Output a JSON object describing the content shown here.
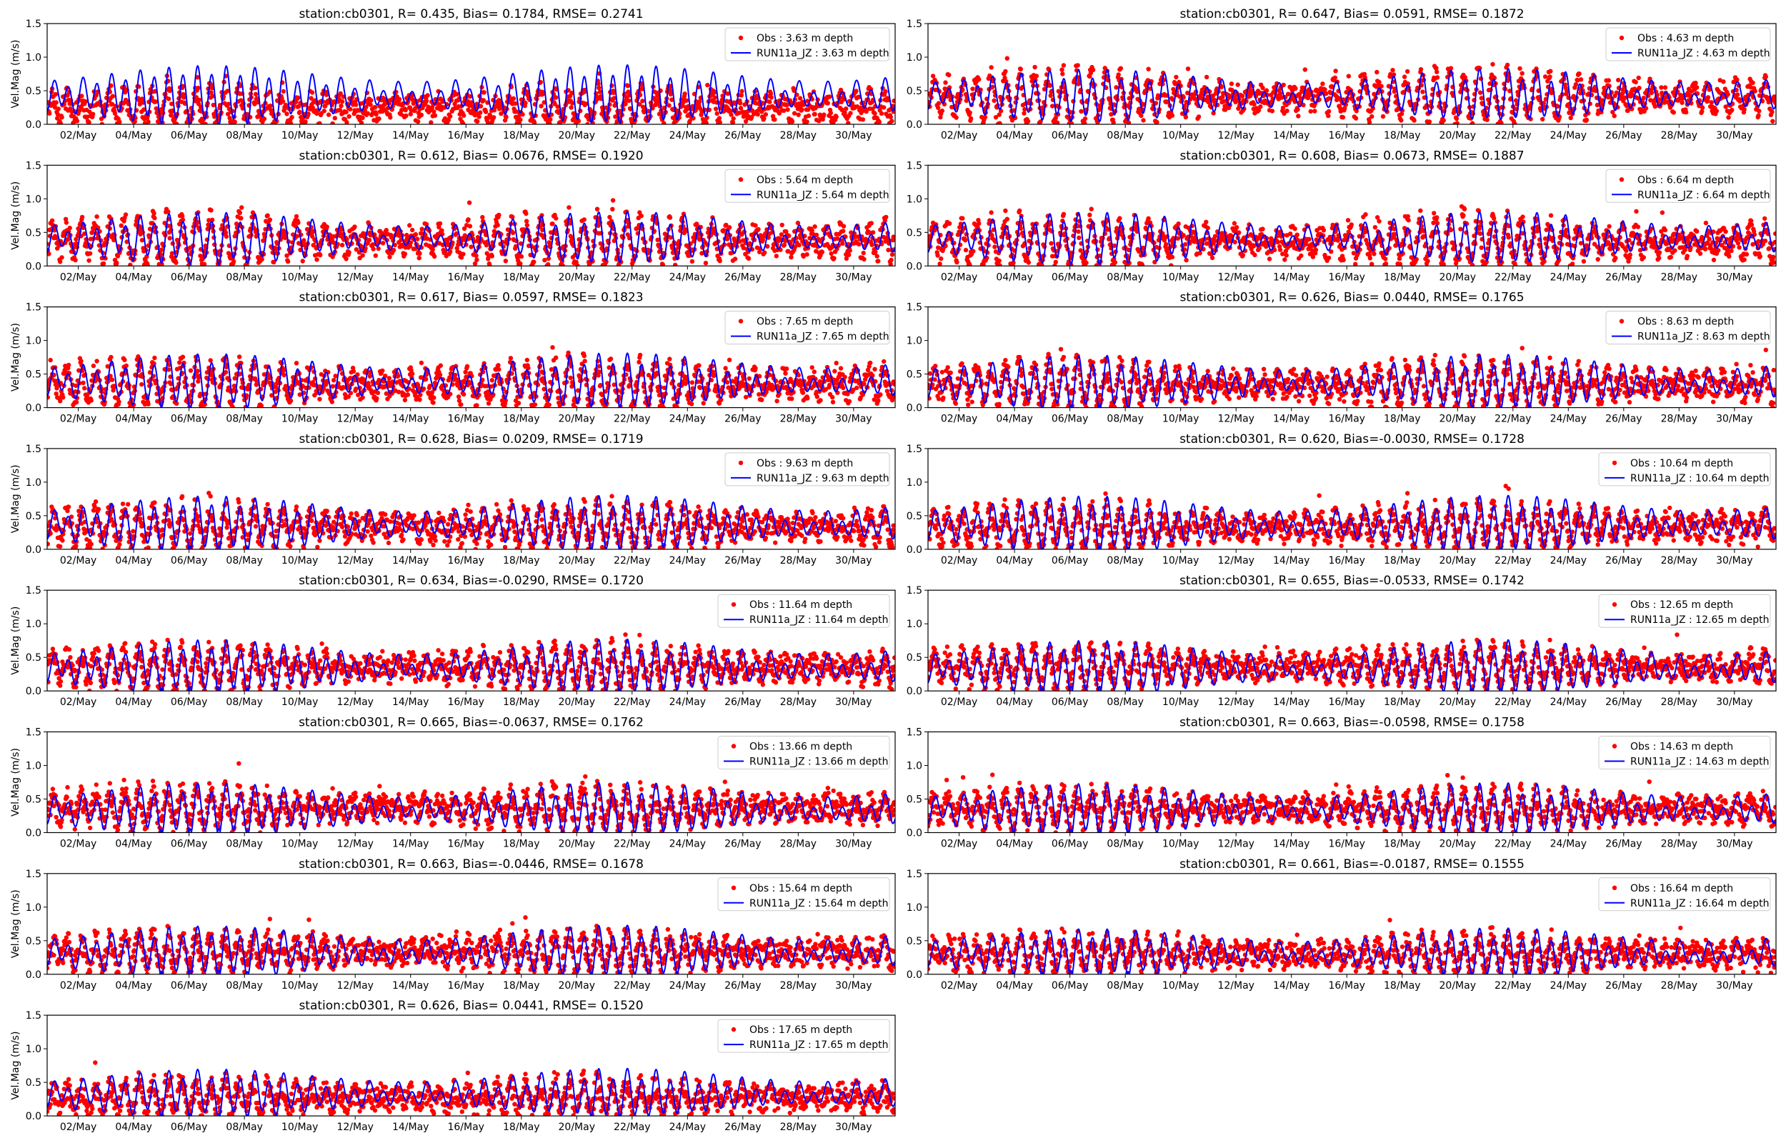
{
  "figure": {
    "obs_color": "#ff0000",
    "model_color": "#0000ff"
  },
  "chart_data": [
    {
      "type": "line",
      "title": "station:cb0301, R= 0.435, Bias= 0.1784, RMSE= 0.2741",
      "ylabel": "Vel.Mag (m/s)",
      "ylim": [
        0,
        1.5
      ],
      "yticks": [
        "0.0",
        "0.5",
        "1.0",
        "1.5"
      ],
      "xticks": [
        "02/May",
        "04/May",
        "06/May",
        "08/May",
        "10/May",
        "12/May",
        "14/May",
        "16/May",
        "18/May",
        "20/May",
        "22/May",
        "24/May",
        "26/May",
        "28/May",
        "30/May"
      ],
      "legend_loc": "upper right",
      "series": [
        {
          "name": "Obs : 3.63 m depth",
          "kind": "scatter",
          "mean": 0.25,
          "amp": 0.22
        },
        {
          "name": "RUN11a_JZ : 3.63 m depth",
          "kind": "line",
          "mean": 0.42,
          "amp": 0.35
        }
      ]
    },
    {
      "type": "line",
      "title": "station:cb0301, R= 0.647, Bias= 0.0591, RMSE= 0.1872",
      "ylabel": "",
      "ylim": [
        0,
        1.5
      ],
      "yticks": [
        "0.0",
        "0.5",
        "1.0",
        "1.5"
      ],
      "xticks": [
        "02/May",
        "04/May",
        "06/May",
        "08/May",
        "10/May",
        "12/May",
        "14/May",
        "16/May",
        "18/May",
        "20/May",
        "22/May",
        "24/May",
        "26/May",
        "28/May",
        "30/May"
      ],
      "legend_loc": "upper right",
      "series": [
        {
          "name": "Obs : 4.63 m depth",
          "kind": "scatter",
          "mean": 0.4,
          "amp": 0.32
        },
        {
          "name": "RUN11a_JZ : 4.63 m depth",
          "kind": "line",
          "mean": 0.42,
          "amp": 0.3
        }
      ]
    },
    {
      "type": "line",
      "title": "station:cb0301, R= 0.612, Bias= 0.0676, RMSE= 0.1920",
      "ylabel": "Vel.Mag (m/s)",
      "ylim": [
        0,
        1.5
      ],
      "yticks": [
        "0.0",
        "0.5",
        "1.0",
        "1.5"
      ],
      "xticks": [
        "02/May",
        "04/May",
        "06/May",
        "08/May",
        "10/May",
        "12/May",
        "14/May",
        "16/May",
        "18/May",
        "20/May",
        "22/May",
        "24/May",
        "26/May",
        "28/May",
        "30/May"
      ],
      "legend_loc": "upper right",
      "series": [
        {
          "name": "Obs : 5.64 m depth",
          "kind": "scatter",
          "mean": 0.38,
          "amp": 0.3
        },
        {
          "name": "RUN11a_JZ : 5.64 m depth",
          "kind": "line",
          "mean": 0.4,
          "amp": 0.3
        }
      ]
    },
    {
      "type": "line",
      "title": "station:cb0301, R= 0.608, Bias= 0.0673, RMSE= 0.1887",
      "ylabel": "",
      "ylim": [
        0,
        1.5
      ],
      "yticks": [
        "0.0",
        "0.5",
        "1.0",
        "1.5"
      ],
      "xticks": [
        "02/May",
        "04/May",
        "06/May",
        "08/May",
        "10/May",
        "12/May",
        "14/May",
        "16/May",
        "18/May",
        "20/May",
        "22/May",
        "24/May",
        "26/May",
        "28/May",
        "30/May"
      ],
      "legend_loc": "upper right",
      "series": [
        {
          "name": "Obs : 6.64 m depth",
          "kind": "scatter",
          "mean": 0.36,
          "amp": 0.3
        },
        {
          "name": "RUN11a_JZ : 6.64 m depth",
          "kind": "line",
          "mean": 0.4,
          "amp": 0.3
        }
      ]
    },
    {
      "type": "line",
      "title": "station:cb0301, R= 0.617, Bias= 0.0597, RMSE= 0.1823",
      "ylabel": "Vel.Mag (m/s)",
      "ylim": [
        0,
        1.5
      ],
      "yticks": [
        "0.0",
        "0.5",
        "1.0",
        "1.5"
      ],
      "xticks": [
        "02/May",
        "04/May",
        "06/May",
        "08/May",
        "10/May",
        "12/May",
        "14/May",
        "16/May",
        "18/May",
        "20/May",
        "22/May",
        "24/May",
        "26/May",
        "28/May",
        "30/May"
      ],
      "legend_loc": "upper right",
      "series": [
        {
          "name": "Obs : 7.65 m depth",
          "kind": "scatter",
          "mean": 0.35,
          "amp": 0.28
        },
        {
          "name": "RUN11a_JZ : 7.65 m depth",
          "kind": "line",
          "mean": 0.38,
          "amp": 0.32
        }
      ]
    },
    {
      "type": "line",
      "title": "station:cb0301, R= 0.626, Bias= 0.0440, RMSE= 0.1765",
      "ylabel": "",
      "ylim": [
        0,
        1.5
      ],
      "yticks": [
        "0.0",
        "0.5",
        "1.0",
        "1.5"
      ],
      "xticks": [
        "02/May",
        "04/May",
        "06/May",
        "08/May",
        "10/May",
        "12/May",
        "14/May",
        "16/May",
        "18/May",
        "20/May",
        "22/May",
        "24/May",
        "26/May",
        "28/May",
        "30/May"
      ],
      "legend_loc": "upper right",
      "series": [
        {
          "name": "Obs : 8.63 m depth",
          "kind": "scatter",
          "mean": 0.34,
          "amp": 0.27
        },
        {
          "name": "RUN11a_JZ : 8.63 m depth",
          "kind": "line",
          "mean": 0.36,
          "amp": 0.32
        }
      ]
    },
    {
      "type": "line",
      "title": "station:cb0301, R= 0.628, Bias= 0.0209, RMSE= 0.1719",
      "ylabel": "Vel.Mag (m/s)",
      "ylim": [
        0,
        1.5
      ],
      "yticks": [
        "0.0",
        "0.5",
        "1.0",
        "1.5"
      ],
      "xticks": [
        "02/May",
        "04/May",
        "06/May",
        "08/May",
        "10/May",
        "12/May",
        "14/May",
        "16/May",
        "18/May",
        "20/May",
        "22/May",
        "24/May",
        "26/May",
        "28/May",
        "30/May"
      ],
      "legend_loc": "upper right",
      "series": [
        {
          "name": "Obs : 9.63 m depth",
          "kind": "scatter",
          "mean": 0.33,
          "amp": 0.27
        },
        {
          "name": "RUN11a_JZ : 9.63 m depth",
          "kind": "line",
          "mean": 0.36,
          "amp": 0.33
        }
      ]
    },
    {
      "type": "line",
      "title": "station:cb0301, R= 0.620, Bias=-0.0030, RMSE= 0.1728",
      "ylabel": "",
      "ylim": [
        0,
        1.5
      ],
      "yticks": [
        "0.0",
        "0.5",
        "1.0",
        "1.5"
      ],
      "xticks": [
        "02/May",
        "04/May",
        "06/May",
        "08/May",
        "10/May",
        "12/May",
        "14/May",
        "16/May",
        "18/May",
        "20/May",
        "22/May",
        "24/May",
        "26/May",
        "28/May",
        "30/May"
      ],
      "legend_loc": "upper right",
      "series": [
        {
          "name": "Obs : 10.64 m depth",
          "kind": "scatter",
          "mean": 0.33,
          "amp": 0.26
        },
        {
          "name": "RUN11a_JZ : 10.64 m depth",
          "kind": "line",
          "mean": 0.36,
          "amp": 0.33
        }
      ]
    },
    {
      "type": "line",
      "title": "station:cb0301, R= 0.634, Bias=-0.0290, RMSE= 0.1720",
      "ylabel": "Vel.Mag (m/s)",
      "ylim": [
        0,
        1.5
      ],
      "yticks": [
        "0.0",
        "0.5",
        "1.0",
        "1.5"
      ],
      "xticks": [
        "02/May",
        "04/May",
        "06/May",
        "08/May",
        "10/May",
        "12/May",
        "14/May",
        "16/May",
        "18/May",
        "20/May",
        "22/May",
        "24/May",
        "26/May",
        "28/May",
        "30/May"
      ],
      "legend_loc": "upper right",
      "series": [
        {
          "name": "Obs : 11.64 m depth",
          "kind": "scatter",
          "mean": 0.35,
          "amp": 0.25
        },
        {
          "name": "RUN11a_JZ : 11.64 m depth",
          "kind": "line",
          "mean": 0.34,
          "amp": 0.32
        }
      ]
    },
    {
      "type": "line",
      "title": "station:cb0301, R= 0.655, Bias=-0.0533, RMSE= 0.1742",
      "ylabel": "",
      "ylim": [
        0,
        1.5
      ],
      "yticks": [
        "0.0",
        "0.5",
        "1.0",
        "1.5"
      ],
      "xticks": [
        "02/May",
        "04/May",
        "06/May",
        "08/May",
        "10/May",
        "12/May",
        "14/May",
        "16/May",
        "18/May",
        "20/May",
        "22/May",
        "24/May",
        "26/May",
        "28/May",
        "30/May"
      ],
      "legend_loc": "upper right",
      "series": [
        {
          "name": "Obs : 12.65 m depth",
          "kind": "scatter",
          "mean": 0.36,
          "amp": 0.24
        },
        {
          "name": "RUN11a_JZ : 12.65 m depth",
          "kind": "line",
          "mean": 0.33,
          "amp": 0.32
        }
      ]
    },
    {
      "type": "line",
      "title": "station:cb0301, R= 0.665, Bias=-0.0637, RMSE= 0.1762",
      "ylabel": "Vel.Mag (m/s)",
      "ylim": [
        0,
        1.5
      ],
      "yticks": [
        "0.0",
        "0.5",
        "1.0",
        "1.5"
      ],
      "xticks": [
        "02/May",
        "04/May",
        "06/May",
        "08/May",
        "10/May",
        "12/May",
        "14/May",
        "16/May",
        "18/May",
        "20/May",
        "22/May",
        "24/May",
        "26/May",
        "28/May",
        "30/May"
      ],
      "legend_loc": "upper right",
      "series": [
        {
          "name": "Obs : 13.66 m depth",
          "kind": "scatter",
          "mean": 0.36,
          "amp": 0.23
        },
        {
          "name": "RUN11a_JZ : 13.66 m depth",
          "kind": "line",
          "mean": 0.33,
          "amp": 0.31
        }
      ]
    },
    {
      "type": "line",
      "title": "station:cb0301, R= 0.663, Bias=-0.0598, RMSE= 0.1758",
      "ylabel": "",
      "ylim": [
        0,
        1.5
      ],
      "yticks": [
        "0.0",
        "0.5",
        "1.0",
        "1.5"
      ],
      "xticks": [
        "02/May",
        "04/May",
        "06/May",
        "08/May",
        "10/May",
        "12/May",
        "14/May",
        "16/May",
        "18/May",
        "20/May",
        "22/May",
        "24/May",
        "26/May",
        "28/May",
        "30/May"
      ],
      "legend_loc": "upper right",
      "series": [
        {
          "name": "Obs : 14.63 m depth",
          "kind": "scatter",
          "mean": 0.35,
          "amp": 0.23
        },
        {
          "name": "RUN11a_JZ : 14.63 m depth",
          "kind": "line",
          "mean": 0.33,
          "amp": 0.3
        }
      ]
    },
    {
      "type": "line",
      "title": "station:cb0301, R= 0.663, Bias=-0.0446, RMSE= 0.1678",
      "ylabel": "Vel.Mag (m/s)",
      "ylim": [
        0,
        1.5
      ],
      "yticks": [
        "0.0",
        "0.5",
        "1.0",
        "1.5"
      ],
      "xticks": [
        "02/May",
        "04/May",
        "06/May",
        "08/May",
        "10/May",
        "12/May",
        "14/May",
        "16/May",
        "18/May",
        "20/May",
        "22/May",
        "24/May",
        "26/May",
        "28/May",
        "30/May"
      ],
      "legend_loc": "upper right",
      "series": [
        {
          "name": "Obs : 15.64 m depth",
          "kind": "scatter",
          "mean": 0.33,
          "amp": 0.22
        },
        {
          "name": "RUN11a_JZ : 15.64 m depth",
          "kind": "line",
          "mean": 0.32,
          "amp": 0.3
        }
      ]
    },
    {
      "type": "line",
      "title": "station:cb0301, R= 0.661, Bias=-0.0187, RMSE= 0.1555",
      "ylabel": "",
      "ylim": [
        0,
        1.5
      ],
      "yticks": [
        "0.0",
        "0.5",
        "1.0",
        "1.5"
      ],
      "xticks": [
        "02/May",
        "04/May",
        "06/May",
        "08/May",
        "10/May",
        "12/May",
        "14/May",
        "16/May",
        "18/May",
        "20/May",
        "22/May",
        "24/May",
        "26/May",
        "28/May",
        "30/May"
      ],
      "legend_loc": "upper right",
      "series": [
        {
          "name": "Obs : 16.64 m depth",
          "kind": "scatter",
          "mean": 0.3,
          "amp": 0.21
        },
        {
          "name": "RUN11a_JZ : 16.64 m depth",
          "kind": "line",
          "mean": 0.3,
          "amp": 0.28
        }
      ]
    },
    {
      "type": "line",
      "title": "station:cb0301, R= 0.626, Bias= 0.0441, RMSE= 0.1520",
      "ylabel": "Vel.Mag (m/s)",
      "ylim": [
        0,
        1.5
      ],
      "yticks": [
        "0.0",
        "0.5",
        "1.0",
        "1.5"
      ],
      "xticks": [
        "02/May",
        "04/May",
        "06/May",
        "08/May",
        "10/May",
        "12/May",
        "14/May",
        "16/May",
        "18/May",
        "20/May",
        "22/May",
        "24/May",
        "26/May",
        "28/May",
        "30/May"
      ],
      "legend_loc": "upper right",
      "series": [
        {
          "name": "Obs : 17.65 m depth",
          "kind": "scatter",
          "mean": 0.27,
          "amp": 0.2
        },
        {
          "name": "RUN11a_JZ : 17.65 m depth",
          "kind": "line",
          "mean": 0.32,
          "amp": 0.28
        }
      ]
    }
  ]
}
